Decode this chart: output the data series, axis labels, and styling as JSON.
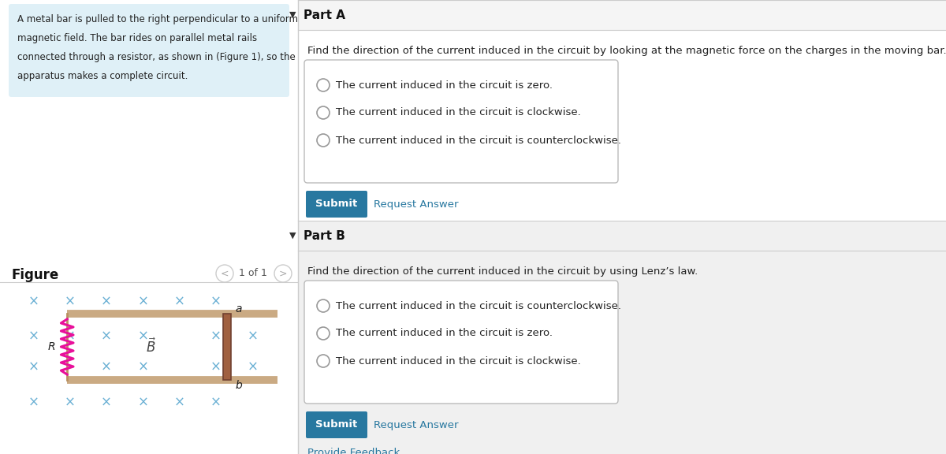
{
  "bg_color": "#ffffff",
  "left_panel_bg": "#dff0f7",
  "left_panel_text_line1": "A metal bar is pulled to the right perpendicular to a uniform",
  "left_panel_text_line2": "magnetic field. The bar rides on parallel metal rails",
  "left_panel_text_line3": "connected through a resistor, as shown in (Figure 1), so the",
  "left_panel_text_line4": "apparatus makes a complete circuit.",
  "figure_label": "Figure",
  "figure_nav": "1 of 1",
  "part_a_header": "Part A",
  "part_a_question": "Find the direction of the current induced in the circuit by looking at the magnetic force on the charges in the moving bar.",
  "part_a_options": [
    "The current induced in the circuit is zero.",
    "The current induced in the circuit is clockwise.",
    "The current induced in the circuit is counterclockwise."
  ],
  "part_b_header": "Part B",
  "part_b_question": "Find the direction of the current induced in the circuit by using Lenz’s law.",
  "part_b_options": [
    "The current induced in the circuit is counterclockwise.",
    "The current induced in the circuit is zero.",
    "The current induced in the circuit is clockwise."
  ],
  "submit_color": "#2878a0",
  "submit_text_color": "#ffffff",
  "request_answer_color": "#2878a0",
  "part_a_bg": "#f5f5f5",
  "part_b_bg": "#f0f0f0",
  "provide_feedback_color": "#2878a0",
  "x_color": "#6ab0d4",
  "rail_color_face": "#d4b896",
  "rail_color_edge": "#b89060",
  "bar_color": "#a06040",
  "bar_edge_color": "#704030",
  "resistor_color": "#e8109a",
  "B_text_color": "#444444",
  "divider_color": "#cccccc",
  "option_box_edge": "#bbbbbb",
  "radio_edge": "#999999"
}
